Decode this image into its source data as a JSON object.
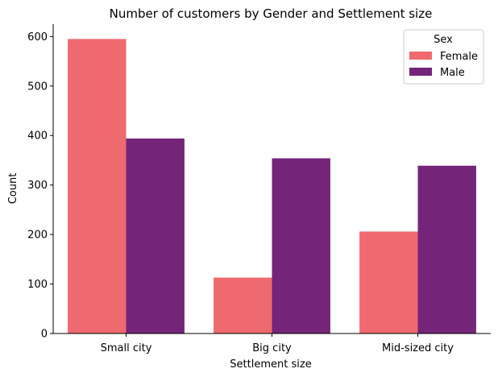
{
  "chart_data": {
    "type": "bar",
    "title": "Number of customers by Gender and Settlement size",
    "xlabel": "Settlement size",
    "ylabel": "Count",
    "categories": [
      "Small city",
      "Big city",
      "Mid-sized city"
    ],
    "series": [
      {
        "name": "Female",
        "values": [
          595,
          113,
          206
        ],
        "color": "#ee6a6e"
      },
      {
        "name": "Male",
        "values": [
          394,
          354,
          339
        ],
        "color": "#742579"
      }
    ],
    "ylim": [
      0,
      625
    ],
    "yticks": [
      0,
      100,
      200,
      300,
      400,
      500,
      600
    ],
    "grid": false,
    "legend": {
      "title": "Sex",
      "position": "top-right"
    }
  }
}
